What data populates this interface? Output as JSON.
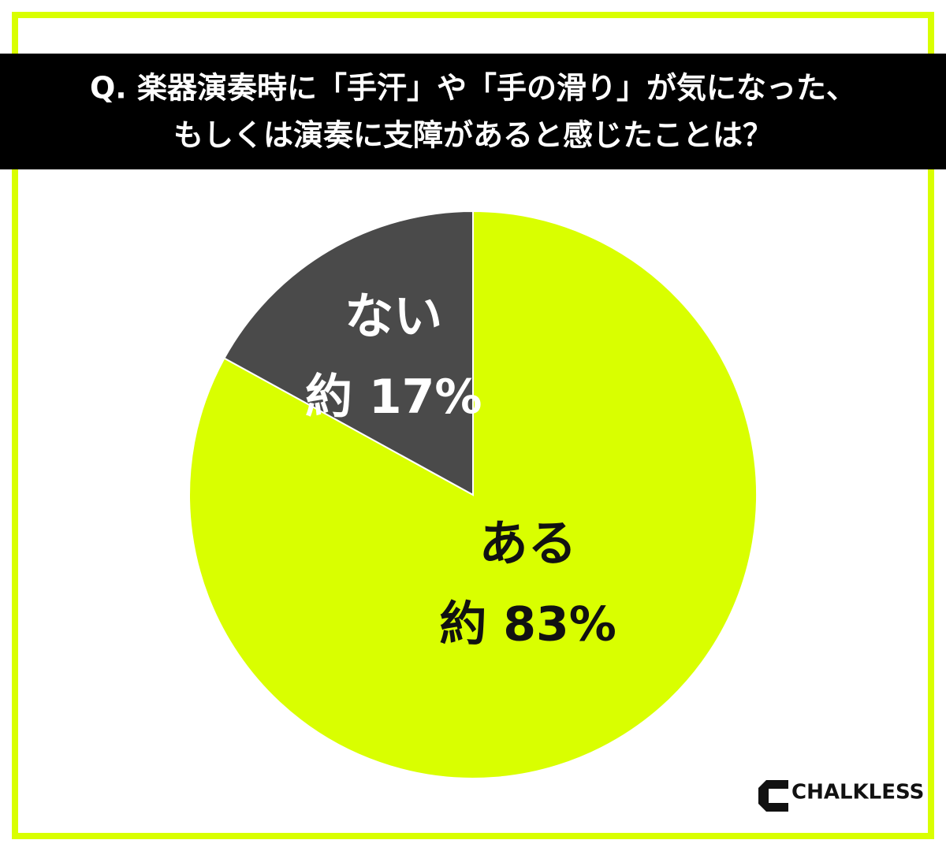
{
  "chart_data": {
    "type": "pie",
    "title_lines": [
      "Q. 楽器演奏時に「手汗」や「手の滑り」が気になった、",
      "もしくは演奏に支障があると感じたことは？"
    ],
    "categories": [
      "ある",
      "ない"
    ],
    "values": [
      83,
      17
    ],
    "value_labels": [
      "約 83%",
      "約 17%"
    ],
    "colors": [
      "#d9ff00",
      "#4a4a4a"
    ],
    "label_colors": [
      "#111111",
      "#ffffff"
    ],
    "start_angle": 0,
    "direction": "clockwise"
  },
  "logo": "CHALKLESS"
}
